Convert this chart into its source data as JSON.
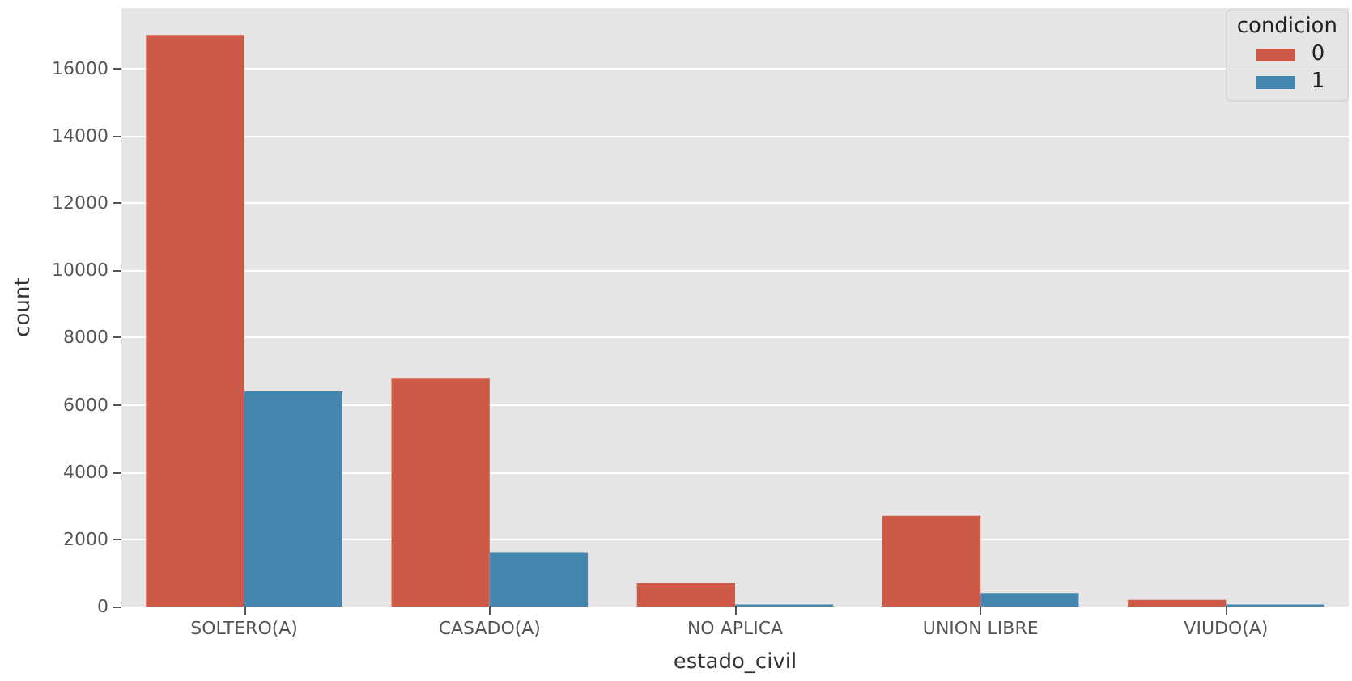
{
  "chart_data": {
    "type": "bar",
    "xlabel": "estado_civil",
    "ylabel": "count",
    "legend_title": "condicion",
    "categories": [
      "SOLTERO(A)",
      "CASADO(A)",
      "NO APLICA",
      "UNION LIBRE",
      "VIUDO(A)"
    ],
    "series": [
      {
        "name": "0",
        "color": "#cd5a46",
        "values": [
          17000,
          6800,
          700,
          2700,
          200
        ]
      },
      {
        "name": "1",
        "color": "#4586ae",
        "values": [
          6400,
          1600,
          60,
          400,
          60
        ]
      }
    ],
    "ylim": [
      0,
      17800
    ],
    "yticks": [
      0,
      2000,
      4000,
      6000,
      8000,
      10000,
      12000,
      14000,
      16000
    ],
    "grid": "y",
    "legend": "top right"
  }
}
